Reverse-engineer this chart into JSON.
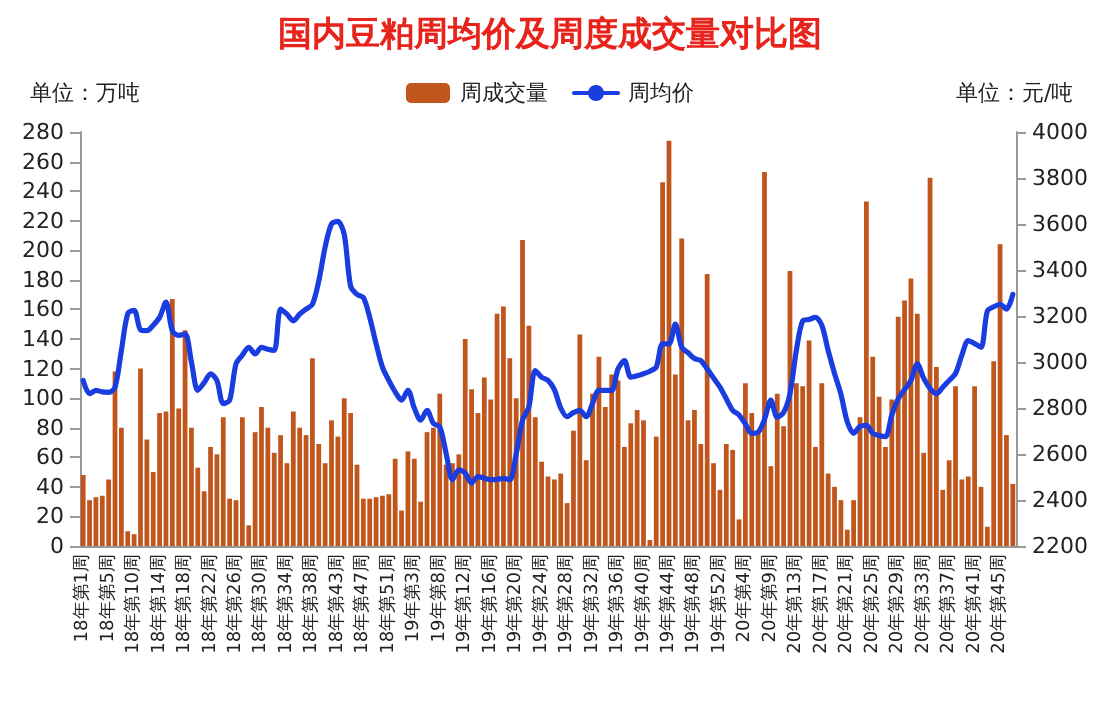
{
  "chart_data": {
    "type": "bar",
    "title": "国内豆粕周均价及周度成交量对比图",
    "ylabel": "单位：万吨",
    "y2label": "单位：元/吨",
    "categories": [
      "18年第1周",
      null,
      null,
      null,
      "18年第5周",
      null,
      null,
      null,
      "18年第10周",
      null,
      null,
      null,
      "18年第14周",
      null,
      null,
      null,
      "18年第18周",
      null,
      null,
      null,
      "18年第22周",
      null,
      null,
      null,
      "18年第26周",
      null,
      null,
      null,
      "18年第30周",
      null,
      null,
      null,
      "18年第34周",
      null,
      null,
      null,
      "18年第38周",
      null,
      null,
      null,
      "18年第43周",
      null,
      null,
      null,
      "18年第47周",
      null,
      null,
      null,
      "18年第51周",
      null,
      null,
      null,
      "19年第3周",
      null,
      null,
      null,
      "19年第8周",
      null,
      null,
      null,
      "19年第12周",
      null,
      null,
      null,
      "19年第16周",
      null,
      null,
      null,
      "19年第20周",
      null,
      null,
      null,
      "19年第24周",
      null,
      null,
      null,
      "19年第28周",
      null,
      null,
      null,
      "19年第32周",
      null,
      null,
      null,
      "19年第36周",
      null,
      null,
      null,
      "19年第40周",
      null,
      null,
      null,
      "19年第44周",
      null,
      null,
      null,
      "19年第48周",
      null,
      null,
      null,
      "19年第52周",
      null,
      null,
      null,
      "20年第4周",
      null,
      null,
      null,
      "20年第9周",
      null,
      null,
      null,
      "20年第13周",
      null,
      null,
      null,
      "20年第17周",
      null,
      null,
      null,
      "20年第21周",
      null,
      null,
      null,
      "20年第25周",
      null,
      null,
      null,
      "20年第29周",
      null,
      null,
      null,
      "20年第33周",
      null,
      null,
      null,
      "20年第37周",
      null,
      null,
      null,
      "20年第41周",
      null,
      null,
      null,
      "20年第45周",
      null,
      null
    ],
    "series": [
      {
        "name": "周成交量",
        "color": "#c0561b",
        "values": [
          48,
          31,
          33,
          34,
          45,
          118,
          80,
          10,
          8,
          120,
          72,
          50,
          90,
          91,
          167,
          93,
          146,
          80,
          53,
          37,
          67,
          62,
          87,
          32,
          31,
          87,
          14,
          77,
          94,
          80,
          63,
          75,
          56,
          91,
          80,
          75,
          127,
          69,
          56,
          85,
          74,
          100,
          90,
          55,
          32,
          32,
          33,
          34,
          35,
          59,
          24,
          64,
          59,
          30,
          77,
          80,
          103,
          55,
          56,
          62,
          140,
          106,
          90,
          114,
          99,
          157,
          162,
          127,
          100,
          207,
          149,
          87,
          57,
          47,
          45,
          49,
          29,
          78,
          143,
          58,
          103,
          128,
          94,
          116,
          112,
          67,
          83,
          92,
          85,
          4,
          74,
          246,
          274,
          116,
          208,
          85,
          92,
          69,
          184,
          56,
          38,
          69,
          65,
          18,
          110,
          90,
          78,
          253,
          54,
          103,
          81,
          186,
          110,
          108,
          139,
          67,
          110,
          49,
          40,
          31,
          11,
          31,
          87,
          233,
          128,
          101,
          67,
          99,
          155,
          166,
          181,
          157,
          63,
          249,
          121,
          38,
          58,
          108,
          45,
          47,
          108,
          40,
          13,
          125,
          204,
          75,
          42
        ]
      },
      {
        "name": "周均价",
        "type": "line",
        "axis": "y2",
        "color": "#1a3de0",
        "values": [
          2920,
          2862,
          2877,
          2870,
          2868,
          2890,
          3050,
          3210,
          3225,
          3140,
          3136,
          3160,
          3194,
          3260,
          3136,
          3116,
          3122,
          3000,
          2877,
          2910,
          2949,
          2920,
          2819,
          2834,
          2992,
          3030,
          3064,
          3035,
          3064,
          3055,
          3050,
          3230,
          3208,
          3179,
          3208,
          3230,
          3251,
          3352,
          3500,
          3600,
          3611,
          3554,
          3330,
          3294,
          3280,
          3194,
          3080,
          2978,
          2920,
          2870,
          2834,
          2877,
          2800,
          2747,
          2790,
          2733,
          2718,
          2603,
          2488,
          2531,
          2517,
          2474,
          2502,
          2495,
          2488,
          2490,
          2494,
          2488,
          2600,
          2747,
          2805,
          2963,
          2934,
          2920,
          2880,
          2800,
          2762,
          2780,
          2790,
          2762,
          2820,
          2877,
          2877,
          2877,
          2970,
          3006,
          2934,
          2940,
          2949,
          2960,
          2978,
          3079,
          3079,
          3165,
          3064,
          3040,
          3015,
          3006,
          2970,
          2930,
          2891,
          2840,
          2790,
          2770,
          2730,
          2690,
          2695,
          2750,
          2834,
          2760,
          2780,
          2862,
          3050,
          3179,
          3185,
          3194,
          3160,
          3050,
          2950,
          2860,
          2740,
          2690,
          2720,
          2725,
          2690,
          2680,
          2675,
          2770,
          2840,
          2880,
          2920,
          2992,
          2930,
          2885,
          2862,
          2890,
          2920,
          2950,
          3030,
          3093,
          3080,
          3064,
          3222,
          3240,
          3251,
          3230,
          3294
        ]
      }
    ],
    "ylim": [
      0,
      280
    ],
    "yticks": [
      0,
      20,
      40,
      60,
      80,
      100,
      120,
      140,
      160,
      180,
      200,
      220,
      240,
      260,
      280
    ],
    "y2lim": [
      2200,
      4000
    ],
    "y2ticks": [
      2200,
      2400,
      2600,
      2800,
      3000,
      3200,
      3400,
      3600,
      3800,
      4000
    ],
    "legend": "top",
    "grid": false
  }
}
